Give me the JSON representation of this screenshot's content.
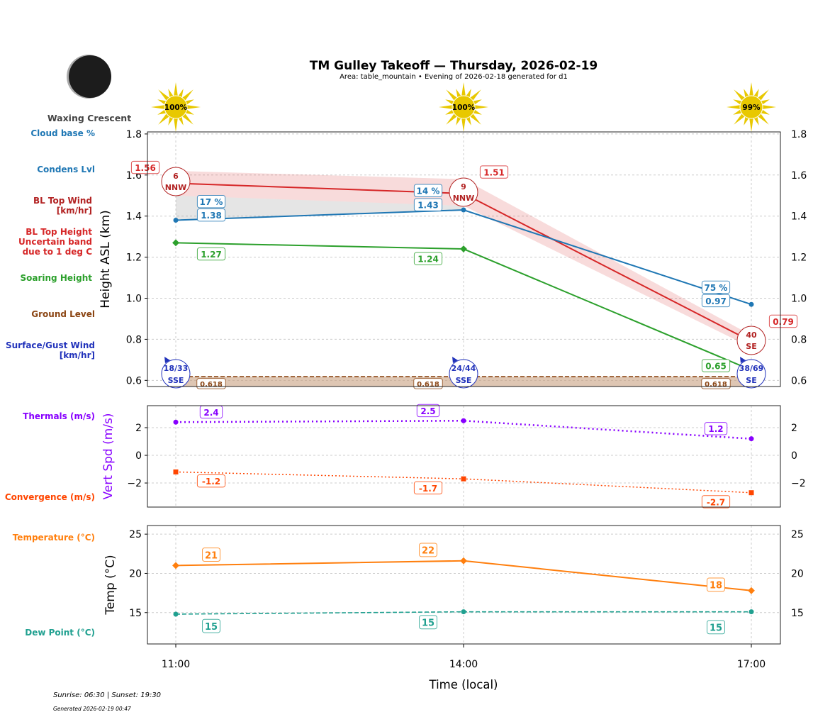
{
  "header": {
    "title": "TM Gulley Takeoff — Thursday, 2026-02-19",
    "subtitle": "Area: table_mountain • Evening of 2026-02-18 generated for d1"
  },
  "moon": {
    "phase": "Waxing Crescent"
  },
  "footer": {
    "sun": "Sunrise: 06:30 | Sunset: 19:30",
    "generated": "Generated 2026-02-19 00:47"
  },
  "side_labels": {
    "cloud_base": "Cloud base %",
    "condens": "Condens Lvl",
    "bl_wind": "BL Top Wind\n[km/hr]",
    "bl_height": "BL Top Height\nUncertain band\ndue to 1 deg C",
    "soaring": "Soaring Height",
    "ground": "Ground Level",
    "surface_wind": "Surface/Gust Wind\n[km/hr]",
    "thermals": "Thermals (m/s)",
    "convergence": "Convergence (m/s)",
    "temperature": "Temperature (°C)",
    "dew_point": "Dew Point (°C)"
  },
  "colors": {
    "cloud": "#1f77b4",
    "bl": "#d62728",
    "bl_wind": "#b22222",
    "soaring": "#2ca02c",
    "ground": "#8b4513",
    "surface_wind": "#2233bb",
    "thermals": "#8800ff",
    "convergence": "#ff4500",
    "temperature": "#ff7f0e",
    "dew": "#20a090",
    "sun": "#e8c800"
  },
  "chart_data": [
    {
      "type": "line",
      "ylabel": "Height ASL (km)",
      "ylim": [
        0.57,
        1.81
      ],
      "yticks": [
        "1.8",
        "1.6",
        "1.4",
        "1.2",
        "1.0",
        "0.8",
        "0.6"
      ],
      "ytick_values": [
        1.8,
        1.6,
        1.4,
        1.2,
        1.0,
        0.8,
        0.6
      ],
      "grid": true,
      "x": [
        "11:00",
        "14:00",
        "17:00"
      ],
      "sun_percent": [
        "100%",
        "100%",
        "99%"
      ],
      "series": [
        {
          "key": "bl_top",
          "values": [
            1.56,
            1.51,
            0.79
          ],
          "labels": [
            "1.56",
            "1.51",
            "0.79"
          ],
          "band_upper": [
            1.62,
            1.58,
            0.82
          ],
          "band_lower": [
            1.5,
            1.45,
            0.76
          ]
        },
        {
          "key": "condens",
          "values": [
            1.38,
            1.43,
            0.97
          ],
          "labels": [
            "1.38",
            "1.43",
            "0.97"
          ],
          "cloud_base_pct": [
            "17 %",
            "14 %",
            "75 %"
          ]
        },
        {
          "key": "soaring",
          "values": [
            1.27,
            1.24,
            0.65
          ],
          "labels": [
            "1.27",
            "1.24",
            "0.65"
          ]
        },
        {
          "key": "ground",
          "values": [
            0.618,
            0.618,
            0.618
          ],
          "labels": [
            "0.618",
            "0.618",
            "0.618"
          ]
        }
      ],
      "bl_wind": [
        {
          "speed": "6",
          "dir": "NNW"
        },
        {
          "speed": "9",
          "dir": "NNW"
        },
        {
          "speed": "40",
          "dir": "SE"
        }
      ],
      "surface_wind": [
        {
          "speed": "18/33",
          "dir": "SSE"
        },
        {
          "speed": "24/44",
          "dir": "SSE"
        },
        {
          "speed": "38/69",
          "dir": "SE"
        }
      ]
    },
    {
      "type": "line",
      "ylabel": "Vert Spd (m/s)",
      "ylim": [
        -3.74,
        3.59
      ],
      "yticks": [
        "2",
        "0",
        "−2"
      ],
      "ytick_values": [
        2,
        0,
        -2
      ],
      "grid": true,
      "x": [
        "11:00",
        "14:00",
        "17:00"
      ],
      "series": [
        {
          "key": "thermals",
          "values": [
            2.4,
            2.5,
            1.2
          ],
          "labels": [
            "2.4",
            "2.5",
            "1.2"
          ]
        },
        {
          "key": "convergence",
          "values": [
            -1.2,
            -1.7,
            -2.7
          ],
          "labels": [
            "-1.2",
            "-1.7",
            "-2.7"
          ]
        }
      ]
    },
    {
      "type": "line",
      "ylabel": "Temp (°C)",
      "xlabel": "Time (local)",
      "ylim": [
        11,
        26.1
      ],
      "yticks": [
        "25",
        "20",
        "15"
      ],
      "ytick_values": [
        25,
        20,
        15
      ],
      "grid": true,
      "x": [
        "11:00",
        "14:00",
        "17:00"
      ],
      "series": [
        {
          "key": "temperature",
          "values": [
            21,
            21.6,
            17.8
          ],
          "labels": [
            "21",
            "22",
            "18"
          ]
        },
        {
          "key": "dew",
          "values": [
            14.8,
            15.1,
            15.1
          ],
          "labels": [
            "15",
            "15",
            "15"
          ]
        }
      ]
    }
  ]
}
